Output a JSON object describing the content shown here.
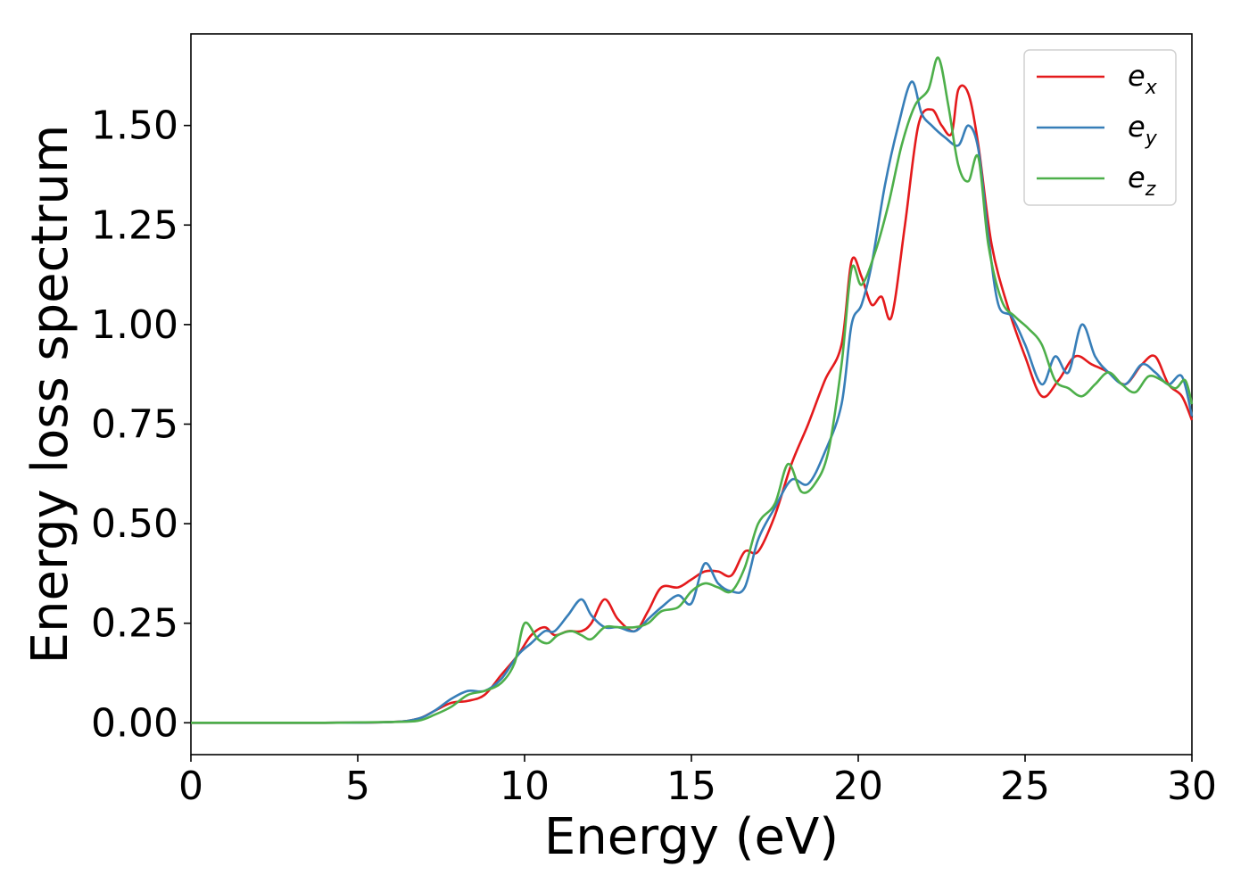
{
  "chart_data": {
    "type": "line",
    "title": "",
    "xlabel": "Energy (eV)",
    "ylabel": "Energy loss spectrum",
    "xlim": [
      0,
      30
    ],
    "ylim": [
      -0.08,
      1.73
    ],
    "xticks": [
      "0",
      "5",
      "10",
      "15",
      "20",
      "25",
      "30"
    ],
    "yticks": [
      "0.00",
      "0.25",
      "0.50",
      "0.75",
      "1.00",
      "1.25",
      "1.50"
    ],
    "grid": false,
    "legend_position": "top-right",
    "series": [
      {
        "name": "e_x",
        "base": "e",
        "sub": "x",
        "color": "#e41a1c",
        "x": [
          0,
          2,
          4,
          6,
          6.8,
          7.3,
          7.8,
          8.3,
          8.8,
          9.3,
          9.8,
          10.2,
          10.6,
          10.9,
          11.3,
          11.7,
          12,
          12.4,
          12.8,
          13.3,
          13.7,
          14.1,
          14.6,
          15,
          15.4,
          15.8,
          16.2,
          16.6,
          17,
          17.5,
          18,
          18.5,
          19,
          19.5,
          19.8,
          20.1,
          20.4,
          20.7,
          21,
          21.4,
          21.8,
          22.2,
          22.5,
          22.8,
          23,
          23.3,
          23.6,
          24,
          24.5,
          25,
          25.5,
          26,
          26.5,
          27,
          27.5,
          28,
          28.5,
          28.9,
          29.3,
          29.7,
          30
        ],
        "y": [
          0,
          0,
          0,
          0.002,
          0.01,
          0.03,
          0.05,
          0.055,
          0.07,
          0.12,
          0.17,
          0.22,
          0.24,
          0.22,
          0.23,
          0.23,
          0.25,
          0.31,
          0.26,
          0.23,
          0.28,
          0.34,
          0.34,
          0.36,
          0.38,
          0.38,
          0.37,
          0.43,
          0.43,
          0.52,
          0.65,
          0.75,
          0.86,
          0.95,
          1.16,
          1.12,
          1.05,
          1.07,
          1.02,
          1.25,
          1.5,
          1.54,
          1.5,
          1.48,
          1.59,
          1.58,
          1.45,
          1.2,
          1.04,
          0.92,
          0.82,
          0.86,
          0.92,
          0.9,
          0.88,
          0.85,
          0.9,
          0.92,
          0.85,
          0.82,
          0.76
        ]
      },
      {
        "name": "e_y",
        "base": "e",
        "sub": "y",
        "color": "#377eb8",
        "x": [
          0,
          2,
          4,
          6,
          6.8,
          7.3,
          7.8,
          8.3,
          8.8,
          9.3,
          9.8,
          10.2,
          10.6,
          10.9,
          11.3,
          11.7,
          12,
          12.4,
          12.8,
          13.3,
          13.7,
          14.1,
          14.6,
          15,
          15.4,
          15.8,
          16.2,
          16.6,
          17,
          17.5,
          18,
          18.5,
          19,
          19.5,
          19.8,
          20.1,
          20.4,
          20.8,
          21.2,
          21.6,
          21.9,
          22.2,
          22.6,
          23,
          23.3,
          23.6,
          23.9,
          24.2,
          24.6,
          25,
          25.5,
          25.9,
          26.3,
          26.7,
          27.1,
          27.5,
          28,
          28.5,
          28.9,
          29.3,
          29.7,
          30
        ],
        "y": [
          0,
          0,
          0,
          0.002,
          0.01,
          0.03,
          0.06,
          0.08,
          0.08,
          0.11,
          0.17,
          0.2,
          0.23,
          0.23,
          0.27,
          0.31,
          0.27,
          0.24,
          0.24,
          0.23,
          0.26,
          0.29,
          0.32,
          0.3,
          0.4,
          0.35,
          0.33,
          0.34,
          0.46,
          0.54,
          0.61,
          0.6,
          0.68,
          0.8,
          1.0,
          1.05,
          1.15,
          1.35,
          1.5,
          1.61,
          1.53,
          1.5,
          1.47,
          1.45,
          1.5,
          1.44,
          1.22,
          1.05,
          1.02,
          0.95,
          0.85,
          0.92,
          0.88,
          1.0,
          0.92,
          0.88,
          0.85,
          0.9,
          0.88,
          0.85,
          0.87,
          0.77
        ]
      },
      {
        "name": "e_z",
        "base": "e",
        "sub": "z",
        "color": "#4daf4a",
        "x": [
          0,
          2,
          4,
          6,
          6.8,
          7.3,
          7.8,
          8.3,
          8.8,
          9.3,
          9.7,
          10,
          10.4,
          10.7,
          11,
          11.4,
          11.7,
          12,
          12.4,
          12.8,
          13.3,
          13.7,
          14.1,
          14.6,
          15,
          15.4,
          15.8,
          16.2,
          16.6,
          17,
          17.5,
          17.9,
          18.3,
          18.7,
          19.1,
          19.5,
          19.8,
          20.1,
          20.5,
          20.9,
          21.3,
          21.7,
          22.1,
          22.4,
          22.7,
          23,
          23.3,
          23.6,
          23.9,
          24.3,
          24.7,
          25.1,
          25.5,
          25.9,
          26.3,
          26.7,
          27.1,
          27.5,
          27.9,
          28.3,
          28.7,
          29.1,
          29.5,
          29.8,
          30
        ],
        "y": [
          0,
          0,
          0,
          0.002,
          0.005,
          0.02,
          0.04,
          0.07,
          0.08,
          0.1,
          0.15,
          0.25,
          0.21,
          0.2,
          0.22,
          0.23,
          0.22,
          0.21,
          0.24,
          0.24,
          0.24,
          0.25,
          0.28,
          0.29,
          0.33,
          0.35,
          0.34,
          0.33,
          0.39,
          0.5,
          0.55,
          0.65,
          0.58,
          0.6,
          0.68,
          0.9,
          1.14,
          1.1,
          1.18,
          1.3,
          1.45,
          1.55,
          1.59,
          1.67,
          1.55,
          1.4,
          1.36,
          1.42,
          1.2,
          1.06,
          1.02,
          0.99,
          0.95,
          0.86,
          0.84,
          0.82,
          0.85,
          0.88,
          0.85,
          0.83,
          0.87,
          0.86,
          0.84,
          0.86,
          0.8
        ]
      }
    ]
  }
}
